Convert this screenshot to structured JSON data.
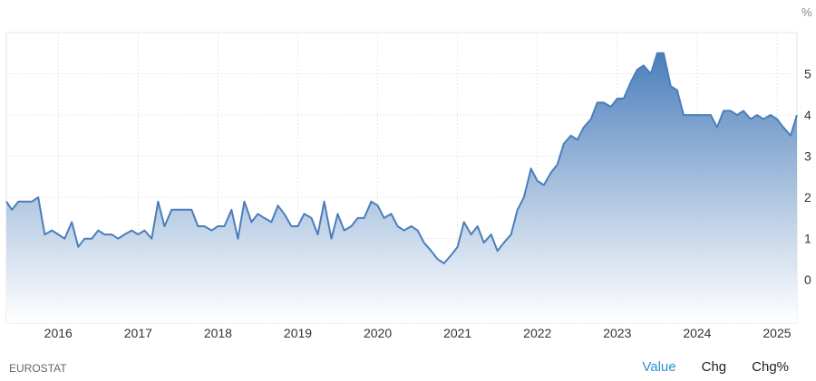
{
  "source": "EUROSTAT",
  "tabs": [
    {
      "label": "Value",
      "active": true
    },
    {
      "label": "Chg",
      "active": false
    },
    {
      "label": "Chg%",
      "active": false
    }
  ],
  "colors": {
    "line": "#4a7ebb",
    "fill_top": "#4a7ebb",
    "fill_bottom": "#ffffff",
    "grid": "#e6e6e6",
    "active_tab": "#2a8fd1"
  },
  "chart_data": {
    "type": "area",
    "unit": "%",
    "x_ticks": [
      "2016",
      "2017",
      "2018",
      "2019",
      "2020",
      "2021",
      "2022",
      "2023",
      "2024",
      "2025"
    ],
    "y_ticks": [
      0,
      1,
      2,
      3,
      4,
      5
    ],
    "xlim": [
      2015.35,
      2025.25
    ],
    "ylim": [
      -1.05,
      6.0
    ],
    "grid": true,
    "series": [
      {
        "values": [
          [
            2015.35,
            1.9
          ],
          [
            2015.42,
            1.7
          ],
          [
            2015.5,
            1.9
          ],
          [
            2015.58,
            1.9
          ],
          [
            2015.67,
            1.9
          ],
          [
            2015.75,
            2.0
          ],
          [
            2015.83,
            1.1
          ],
          [
            2015.92,
            1.2
          ],
          [
            2016.0,
            1.1
          ],
          [
            2016.08,
            1.0
          ],
          [
            2016.17,
            1.4
          ],
          [
            2016.25,
            0.8
          ],
          [
            2016.33,
            1.0
          ],
          [
            2016.42,
            1.0
          ],
          [
            2016.5,
            1.2
          ],
          [
            2016.58,
            1.1
          ],
          [
            2016.67,
            1.1
          ],
          [
            2016.75,
            1.0
          ],
          [
            2016.83,
            1.1
          ],
          [
            2016.92,
            1.2
          ],
          [
            2017.0,
            1.1
          ],
          [
            2017.08,
            1.2
          ],
          [
            2017.17,
            1.0
          ],
          [
            2017.25,
            1.9
          ],
          [
            2017.33,
            1.3
          ],
          [
            2017.42,
            1.7
          ],
          [
            2017.5,
            1.7
          ],
          [
            2017.58,
            1.7
          ],
          [
            2017.67,
            1.7
          ],
          [
            2017.75,
            1.3
          ],
          [
            2017.83,
            1.3
          ],
          [
            2017.92,
            1.2
          ],
          [
            2018.0,
            1.3
          ],
          [
            2018.08,
            1.3
          ],
          [
            2018.17,
            1.7
          ],
          [
            2018.25,
            1.0
          ],
          [
            2018.33,
            1.9
          ],
          [
            2018.42,
            1.4
          ],
          [
            2018.5,
            1.6
          ],
          [
            2018.58,
            1.5
          ],
          [
            2018.67,
            1.4
          ],
          [
            2018.75,
            1.8
          ],
          [
            2018.83,
            1.6
          ],
          [
            2018.92,
            1.3
          ],
          [
            2019.0,
            1.3
          ],
          [
            2019.08,
            1.6
          ],
          [
            2019.17,
            1.5
          ],
          [
            2019.25,
            1.1
          ],
          [
            2019.33,
            1.9
          ],
          [
            2019.42,
            1.0
          ],
          [
            2019.5,
            1.6
          ],
          [
            2019.58,
            1.2
          ],
          [
            2019.67,
            1.3
          ],
          [
            2019.75,
            1.5
          ],
          [
            2019.83,
            1.5
          ],
          [
            2019.92,
            1.9
          ],
          [
            2020.0,
            1.8
          ],
          [
            2020.08,
            1.5
          ],
          [
            2020.17,
            1.6
          ],
          [
            2020.25,
            1.3
          ],
          [
            2020.33,
            1.2
          ],
          [
            2020.42,
            1.3
          ],
          [
            2020.5,
            1.2
          ],
          [
            2020.58,
            0.9
          ],
          [
            2020.67,
            0.7
          ],
          [
            2020.75,
            0.5
          ],
          [
            2020.83,
            0.4
          ],
          [
            2020.92,
            0.6
          ],
          [
            2021.0,
            0.8
          ],
          [
            2021.08,
            1.4
          ],
          [
            2021.17,
            1.1
          ],
          [
            2021.25,
            1.3
          ],
          [
            2021.33,
            0.9
          ],
          [
            2021.42,
            1.1
          ],
          [
            2021.5,
            0.7
          ],
          [
            2021.58,
            0.9
          ],
          [
            2021.67,
            1.1
          ],
          [
            2021.75,
            1.7
          ],
          [
            2021.83,
            2.0
          ],
          [
            2021.92,
            2.7
          ],
          [
            2022.0,
            2.4
          ],
          [
            2022.08,
            2.3
          ],
          [
            2022.17,
            2.6
          ],
          [
            2022.25,
            2.8
          ],
          [
            2022.33,
            3.3
          ],
          [
            2022.42,
            3.5
          ],
          [
            2022.5,
            3.4
          ],
          [
            2022.58,
            3.7
          ],
          [
            2022.67,
            3.9
          ],
          [
            2022.75,
            4.3
          ],
          [
            2022.83,
            4.3
          ],
          [
            2022.92,
            4.2
          ],
          [
            2023.0,
            4.4
          ],
          [
            2023.08,
            4.4
          ],
          [
            2023.17,
            4.8
          ],
          [
            2023.25,
            5.1
          ],
          [
            2023.33,
            5.2
          ],
          [
            2023.42,
            5.0
          ],
          [
            2023.5,
            5.5
          ],
          [
            2023.58,
            5.5
          ],
          [
            2023.67,
            4.7
          ],
          [
            2023.75,
            4.6
          ],
          [
            2023.83,
            4.0
          ],
          [
            2023.92,
            4.0
          ],
          [
            2024.0,
            4.0
          ],
          [
            2024.08,
            4.0
          ],
          [
            2024.17,
            4.0
          ],
          [
            2024.25,
            3.7
          ],
          [
            2024.33,
            4.1
          ],
          [
            2024.42,
            4.1
          ],
          [
            2024.5,
            4.0
          ],
          [
            2024.58,
            4.1
          ],
          [
            2024.67,
            3.9
          ],
          [
            2024.75,
            4.0
          ],
          [
            2024.83,
            3.9
          ],
          [
            2024.92,
            4.0
          ],
          [
            2025.0,
            3.9
          ],
          [
            2025.08,
            3.7
          ],
          [
            2025.17,
            3.5
          ],
          [
            2025.25,
            4.0
          ]
        ]
      }
    ]
  }
}
